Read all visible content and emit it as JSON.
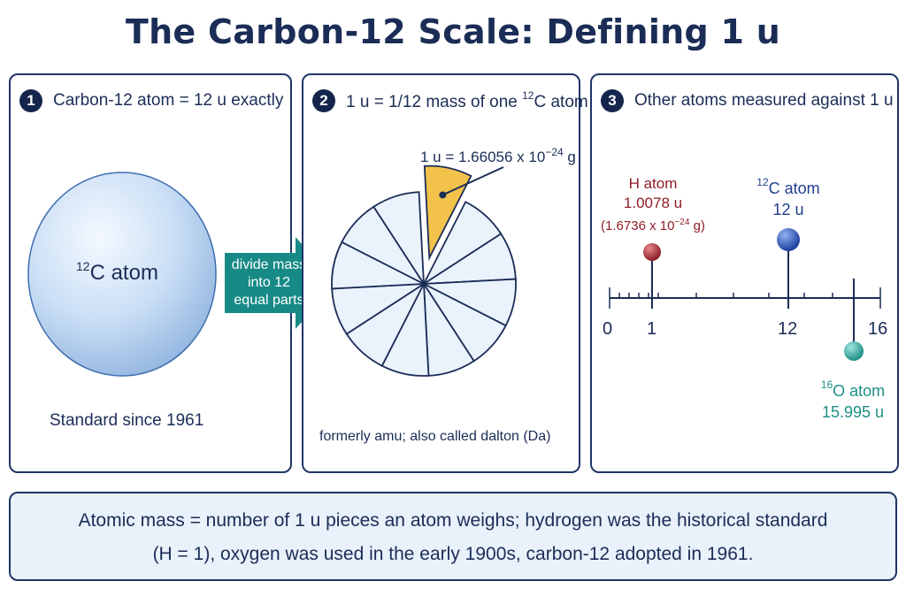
{
  "title": "The Carbon-12 Scale: Defining 1 u",
  "panel1": {
    "step": "1",
    "heading": "Carbon-12 atom = 12 u exactly",
    "atom_sup": "12",
    "atom_label": "C atom",
    "footer": "Standard since 1961"
  },
  "arrow": {
    "line1": "divide mass",
    "line2": "into 12",
    "line3": "equal parts"
  },
  "panel2": {
    "step": "2",
    "heading_pre": "1 u = 1/12 mass of one",
    "heading_sup": "12",
    "heading_post": "C atom",
    "value_pre": "1 u = 1.66056 x 10",
    "value_exp": "−24",
    "value_post": " g",
    "footer": "formerly amu; also called dalton (Da)"
  },
  "panel3": {
    "step": "3",
    "heading": "Other atoms measured against 1 u",
    "h_name": "H atom",
    "h_mass": "1.0078 u",
    "h_grams_pre": "(1.6736 x 10",
    "h_grams_exp": "−24",
    "h_grams_post": " g)",
    "c_sup": "12",
    "c_name": "C atom",
    "c_mass": "12 u",
    "o_sup": "16",
    "o_name": "O atom",
    "o_mass": "15.995 u",
    "ticks": [
      "0",
      "1",
      "12",
      "16"
    ]
  },
  "footnote": {
    "line1": "Atomic mass = number of 1 u pieces an atom weighs; hydrogen was the historical standard",
    "line2": "(H = 1), oxygen was used in the early 1900s, carbon-12 adopted in 1961."
  },
  "colors": {
    "navy": "#1b2d56",
    "h_red": "#8e1e28",
    "c_blue": "#1f4fb3",
    "o_teal": "#1e8f86",
    "arrow_teal": "#178a86",
    "wedge_gold": "#f2c24b",
    "sphere_blue": "#b9d6f5"
  }
}
